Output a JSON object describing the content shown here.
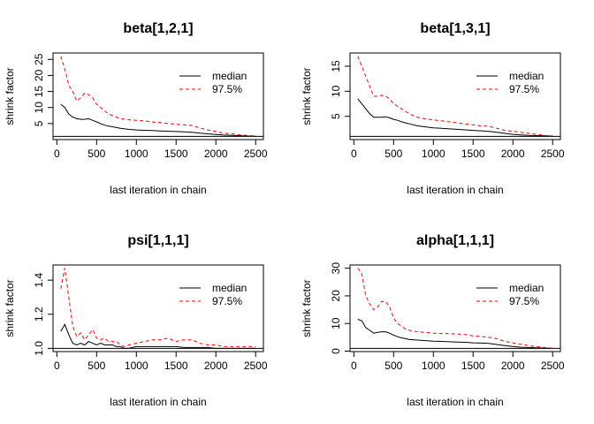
{
  "chart_data": [
    {
      "type": "line",
      "title": "beta[1,2,1]",
      "xlabel": "last iteration in chain",
      "ylabel": "shrink factor",
      "xlim": [
        50,
        2500
      ],
      "ylim": [
        1,
        26
      ],
      "xticks": [
        0,
        500,
        1000,
        1500,
        2000,
        2500
      ],
      "yticks": [
        5,
        10,
        15,
        20,
        25
      ],
      "reference_line": 1,
      "legend": {
        "position": "top-right",
        "entries": [
          "median",
          "97.5%"
        ]
      },
      "x": [
        50,
        100,
        150,
        200,
        250,
        300,
        350,
        400,
        450,
        500,
        550,
        600,
        650,
        700,
        800,
        900,
        1000,
        1100,
        1200,
        1300,
        1400,
        1500,
        1600,
        1700,
        1800,
        1900,
        2000,
        2100,
        2200,
        2300,
        2400,
        2500
      ],
      "series": [
        {
          "name": "median",
          "color": "#000000",
          "dash": "solid",
          "values": [
            11.0,
            10.0,
            8.0,
            7.0,
            6.5,
            6.3,
            6.3,
            6.5,
            6.0,
            5.5,
            5.0,
            4.5,
            4.2,
            4.0,
            3.5,
            3.2,
            3.0,
            2.9,
            2.8,
            2.7,
            2.6,
            2.5,
            2.4,
            2.3,
            2.0,
            1.8,
            1.6,
            1.4,
            1.3,
            1.2,
            1.1,
            1.05
          ]
        },
        {
          "name": "97.5%",
          "color": "#ff0000",
          "dash": "dashed",
          "values": [
            26.0,
            22.0,
            17.0,
            15.0,
            12.0,
            13.0,
            14.5,
            14.0,
            13.0,
            11.0,
            10.0,
            9.0,
            8.0,
            7.5,
            6.5,
            6.2,
            6.0,
            5.8,
            5.5,
            5.3,
            5.0,
            4.8,
            4.6,
            4.4,
            3.6,
            3.0,
            2.5,
            2.0,
            1.8,
            1.5,
            1.3,
            1.1
          ]
        }
      ]
    },
    {
      "type": "line",
      "title": "beta[1,3,1]",
      "xlabel": "last iteration in chain",
      "ylabel": "shrink factor",
      "xlim": [
        50,
        2500
      ],
      "ylim": [
        1,
        17
      ],
      "xticks": [
        0,
        500,
        1000,
        1500,
        2000,
        2500
      ],
      "yticks": [
        5,
        10,
        15
      ],
      "reference_line": 1,
      "legend": {
        "position": "top-right",
        "entries": [
          "median",
          "97.5%"
        ]
      },
      "x": [
        50,
        100,
        150,
        200,
        250,
        300,
        350,
        400,
        450,
        500,
        550,
        600,
        650,
        700,
        800,
        900,
        1000,
        1100,
        1200,
        1300,
        1400,
        1500,
        1600,
        1700,
        1800,
        1900,
        2000,
        2100,
        2200,
        2300,
        2400,
        2500
      ],
      "series": [
        {
          "name": "median",
          "color": "#000000",
          "dash": "solid",
          "values": [
            8.5,
            7.5,
            6.5,
            5.5,
            4.8,
            4.8,
            4.8,
            4.9,
            4.7,
            4.4,
            4.2,
            3.9,
            3.7,
            3.5,
            3.1,
            2.9,
            2.7,
            2.6,
            2.5,
            2.4,
            2.3,
            2.2,
            2.1,
            2.0,
            1.8,
            1.6,
            1.4,
            1.3,
            1.2,
            1.15,
            1.1,
            1.05
          ]
        },
        {
          "name": "97.5%",
          "color": "#ff0000",
          "dash": "dashed",
          "values": [
            17.0,
            15.0,
            13.0,
            11.0,
            9.0,
            9.0,
            9.2,
            9.0,
            8.5,
            7.5,
            7.0,
            6.5,
            6.0,
            5.5,
            4.8,
            4.5,
            4.3,
            4.1,
            3.9,
            3.7,
            3.5,
            3.3,
            3.1,
            3.0,
            2.6,
            2.2,
            2.0,
            1.8,
            1.6,
            1.4,
            1.2,
            1.1
          ]
        }
      ]
    },
    {
      "type": "line",
      "title": "psi[1,1,1]",
      "xlabel": "last iteration in chain",
      "ylabel": "shrink factor",
      "xlim": [
        50,
        2500
      ],
      "ylim": [
        1,
        1.47
      ],
      "xticks": [
        0,
        500,
        1000,
        1500,
        2000,
        2500
      ],
      "yticks": [
        1.0,
        1.2,
        1.4
      ],
      "reference_line": 1,
      "legend": {
        "position": "top-right",
        "entries": [
          "median",
          "97.5%"
        ]
      },
      "x": [
        50,
        100,
        150,
        200,
        250,
        300,
        350,
        400,
        450,
        500,
        550,
        600,
        650,
        700,
        750,
        800,
        850,
        900,
        1000,
        1100,
        1200,
        1300,
        1400,
        1500,
        1600,
        1700,
        1800,
        1900,
        2000,
        2100,
        2200,
        2300,
        2400,
        2500
      ],
      "series": [
        {
          "name": "median",
          "color": "#000000",
          "dash": "solid",
          "values": [
            1.1,
            1.14,
            1.08,
            1.03,
            1.02,
            1.03,
            1.02,
            1.04,
            1.03,
            1.02,
            1.03,
            1.02,
            1.02,
            1.02,
            1.01,
            1.01,
            1.0,
            1.0,
            1.01,
            1.01,
            1.01,
            1.01,
            1.01,
            1.01,
            1.005,
            1.005,
            1.005,
            1.005,
            1.0,
            1.0,
            1.0,
            1.0,
            1.0,
            1.0
          ]
        },
        {
          "name": "97.5%",
          "color": "#ff0000",
          "dash": "dashed",
          "values": [
            1.35,
            1.47,
            1.3,
            1.13,
            1.07,
            1.09,
            1.05,
            1.08,
            1.11,
            1.06,
            1.05,
            1.06,
            1.04,
            1.04,
            1.04,
            1.02,
            1.01,
            1.02,
            1.03,
            1.04,
            1.05,
            1.05,
            1.06,
            1.04,
            1.05,
            1.05,
            1.03,
            1.02,
            1.02,
            1.01,
            1.01,
            1.01,
            1.01,
            1.01
          ]
        }
      ]
    },
    {
      "type": "line",
      "title": "alpha[1,1,1]",
      "xlabel": "last iteration in chain",
      "ylabel": "shrink factor",
      "xlim": [
        50,
        2500
      ],
      "ylim": [
        1,
        30
      ],
      "xticks": [
        0,
        500,
        1000,
        1500,
        2000,
        2500
      ],
      "yticks": [
        0,
        10,
        20,
        30
      ],
      "reference_line": 1,
      "legend": {
        "position": "top-right",
        "entries": [
          "median",
          "97.5%"
        ]
      },
      "x": [
        50,
        100,
        150,
        200,
        250,
        300,
        350,
        400,
        450,
        500,
        550,
        600,
        650,
        700,
        800,
        900,
        1000,
        1100,
        1200,
        1300,
        1400,
        1500,
        1600,
        1700,
        1800,
        1900,
        2000,
        2100,
        2200,
        2300,
        2400,
        2500
      ],
      "series": [
        {
          "name": "median",
          "color": "#000000",
          "dash": "solid",
          "values": [
            11.5,
            11.0,
            8.5,
            7.5,
            6.5,
            6.8,
            7.0,
            7.0,
            6.5,
            5.8,
            5.2,
            4.8,
            4.5,
            4.2,
            4.0,
            3.8,
            3.6,
            3.5,
            3.4,
            3.3,
            3.2,
            3.0,
            2.9,
            2.8,
            2.4,
            2.0,
            1.7,
            1.4,
            1.3,
            1.2,
            1.1,
            1.05
          ]
        },
        {
          "name": "97.5%",
          "color": "#ff0000",
          "dash": "dashed",
          "values": [
            30.0,
            28.0,
            20.0,
            17.0,
            15.0,
            16.0,
            18.0,
            18.0,
            16.0,
            12.0,
            10.0,
            9.0,
            8.0,
            7.5,
            7.0,
            6.8,
            6.5,
            6.4,
            6.3,
            6.2,
            6.0,
            5.5,
            5.3,
            5.0,
            4.5,
            3.5,
            3.0,
            2.5,
            2.0,
            1.6,
            1.3,
            1.1
          ]
        }
      ]
    }
  ]
}
